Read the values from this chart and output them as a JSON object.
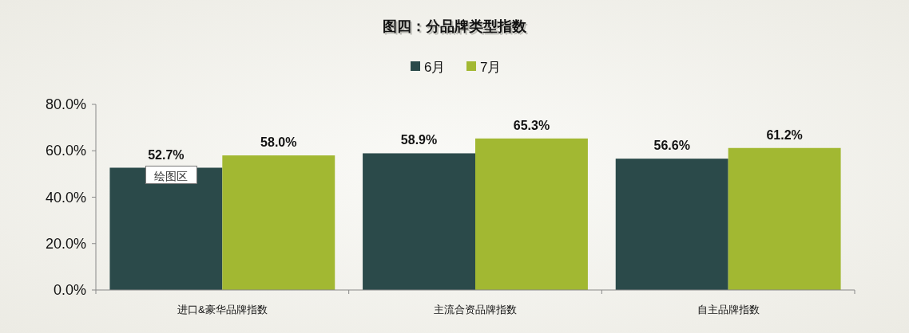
{
  "chart_data": {
    "type": "bar",
    "title": "图四：分品牌类型指数",
    "categories": [
      "进口&豪华品牌指数",
      "主流合资品牌指数",
      "自主品牌指数"
    ],
    "series": [
      {
        "name": "6月",
        "color": "#2b4a4a",
        "values": [
          52.7,
          58.9,
          56.6
        ],
        "value_labels": [
          "52.7%",
          "58.9%",
          "56.6%"
        ]
      },
      {
        "name": "7月",
        "color": "#a2b832",
        "values": [
          58.0,
          65.3,
          61.2
        ],
        "value_labels": [
          "58.0%",
          "65.3%",
          "61.2%"
        ]
      }
    ],
    "ylim": [
      0,
      80
    ],
    "yticks": [
      {
        "value": 0,
        "label": "0.0%"
      },
      {
        "value": 20,
        "label": "20.0%"
      },
      {
        "value": 40,
        "label": "40.0%"
      },
      {
        "value": 60,
        "label": "60.0%"
      },
      {
        "value": 80,
        "label": "80.0%"
      }
    ],
    "annotations": [
      "绘图区"
    ],
    "legend": "top",
    "grid": false
  }
}
